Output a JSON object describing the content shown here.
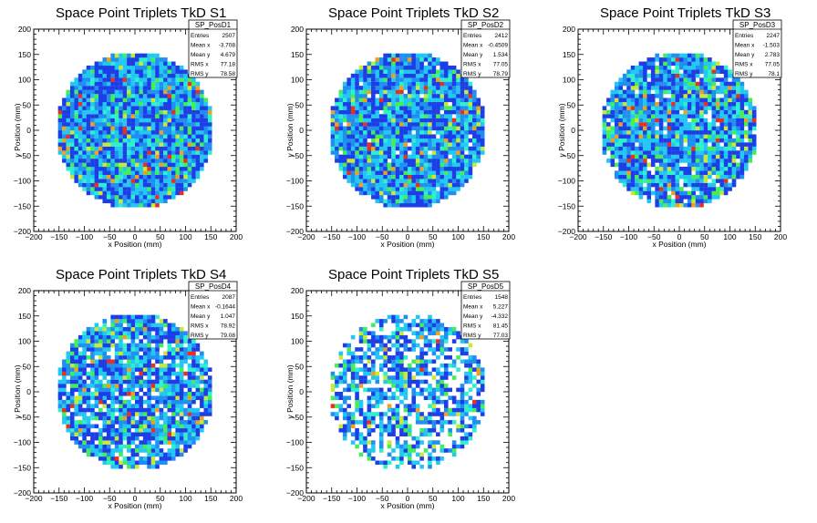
{
  "chart_data": [
    {
      "type": "heatmap",
      "title": "Space Point Triplets TkD S1",
      "xlabel": "x Position (mm)",
      "ylabel": "y Position (mm)",
      "xlim": [
        -200,
        200
      ],
      "ylim": [
        -200,
        200
      ],
      "xticks": [
        "−200",
        "−150",
        "−100",
        "−50",
        "0",
        "50",
        "100",
        "150",
        "200"
      ],
      "yticks": [
        "−200",
        "−150",
        "−100",
        "−50",
        "0",
        "50",
        "100",
        "150",
        "200"
      ],
      "occupied_radius_mm": 155,
      "stats": {
        "name": "SP_PosD1",
        "rows": [
          {
            "label": "Entries",
            "value": "2507"
          },
          {
            "label": "Mean x",
            "value": "-3.708"
          },
          {
            "label": "Mean y",
            "value": "4.679"
          },
          {
            "label": "RMS x",
            "value": "77.18"
          },
          {
            "label": "RMS y",
            "value": "78.58"
          }
        ]
      },
      "fill_fraction": 1.0
    },
    {
      "type": "heatmap",
      "title": "Space Point Triplets TkD S2",
      "xlabel": "x Position (mm)",
      "ylabel": "y Position (mm)",
      "xlim": [
        -200,
        200
      ],
      "ylim": [
        -200,
        200
      ],
      "xticks": [
        "−200",
        "−150",
        "−100",
        "−50",
        "0",
        "50",
        "100",
        "150",
        "200"
      ],
      "yticks": [
        "−200",
        "−150",
        "−100",
        "−50",
        "0",
        "50",
        "100",
        "150",
        "200"
      ],
      "occupied_radius_mm": 155,
      "stats": {
        "name": "SP_PosD2",
        "rows": [
          {
            "label": "Entries",
            "value": "2412"
          },
          {
            "label": "Mean x",
            "value": "-0.4509"
          },
          {
            "label": "Mean y",
            "value": "1.534"
          },
          {
            "label": "RMS x",
            "value": "77.05"
          },
          {
            "label": "RMS y",
            "value": "78.79"
          }
        ]
      },
      "fill_fraction": 0.97
    },
    {
      "type": "heatmap",
      "title": "Space Point Triplets TkD S3",
      "xlabel": "x Position (mm)",
      "ylabel": "y Position (mm)",
      "xlim": [
        -200,
        200
      ],
      "ylim": [
        -200,
        200
      ],
      "xticks": [
        "−200",
        "−150",
        "−100",
        "−50",
        "0",
        "50",
        "100",
        "150",
        "200"
      ],
      "yticks": [
        "−200",
        "−150",
        "−100",
        "−50",
        "0",
        "50",
        "100",
        "150",
        "200"
      ],
      "occupied_radius_mm": 155,
      "stats": {
        "name": "SP_PosD3",
        "rows": [
          {
            "label": "Entries",
            "value": "2247"
          },
          {
            "label": "Mean x",
            "value": "-1.503"
          },
          {
            "label": "Mean y",
            "value": "2.783"
          },
          {
            "label": "RMS x",
            "value": "77.05"
          },
          {
            "label": "RMS y",
            "value": "78.1"
          }
        ]
      },
      "fill_fraction": 0.93
    },
    {
      "type": "heatmap",
      "title": "Space Point Triplets TkD S4",
      "xlabel": "x Position (mm)",
      "ylabel": "y Position (mm)",
      "xlim": [
        -200,
        200
      ],
      "ylim": [
        -200,
        200
      ],
      "xticks": [
        "−200",
        "−150",
        "−100",
        "−50",
        "0",
        "50",
        "100",
        "150",
        "200"
      ],
      "yticks": [
        "−200",
        "−150",
        "−100",
        "−50",
        "0",
        "50",
        "100",
        "150",
        "200"
      ],
      "occupied_radius_mm": 155,
      "stats": {
        "name": "SP_PosD4",
        "rows": [
          {
            "label": "Entries",
            "value": "2087"
          },
          {
            "label": "Mean x",
            "value": "-0.1644"
          },
          {
            "label": "Mean y",
            "value": "1.047"
          },
          {
            "label": "RMS x",
            "value": "78.92"
          },
          {
            "label": "RMS y",
            "value": "79.08"
          }
        ]
      },
      "fill_fraction": 0.88
    },
    {
      "type": "heatmap",
      "title": "Space Point Triplets TkD S5",
      "xlabel": "x Position (mm)",
      "ylabel": "y Position (mm)",
      "xlim": [
        -200,
        200
      ],
      "ylim": [
        -200,
        200
      ],
      "xticks": [
        "−200",
        "−150",
        "−100",
        "−50",
        "0",
        "50",
        "100",
        "150",
        "200"
      ],
      "yticks": [
        "−200",
        "−150",
        "−100",
        "−50",
        "0",
        "50",
        "100",
        "150",
        "200"
      ],
      "occupied_radius_mm": 155,
      "stats": {
        "name": "SP_PosD5",
        "rows": [
          {
            "label": "Entries",
            "value": "1548"
          },
          {
            "label": "Mean x",
            "value": "5.227"
          },
          {
            "label": "Mean y",
            "value": "-4.332"
          },
          {
            "label": "RMS x",
            "value": "81.45"
          },
          {
            "label": "RMS y",
            "value": "77.03"
          }
        ]
      },
      "fill_fraction": 0.62
    }
  ],
  "palette": [
    "#1d3ee6",
    "#1f8ff0",
    "#22c8f2",
    "#2ff0cc",
    "#44ee55",
    "#c8e83a",
    "#f0a020",
    "#e83020"
  ]
}
